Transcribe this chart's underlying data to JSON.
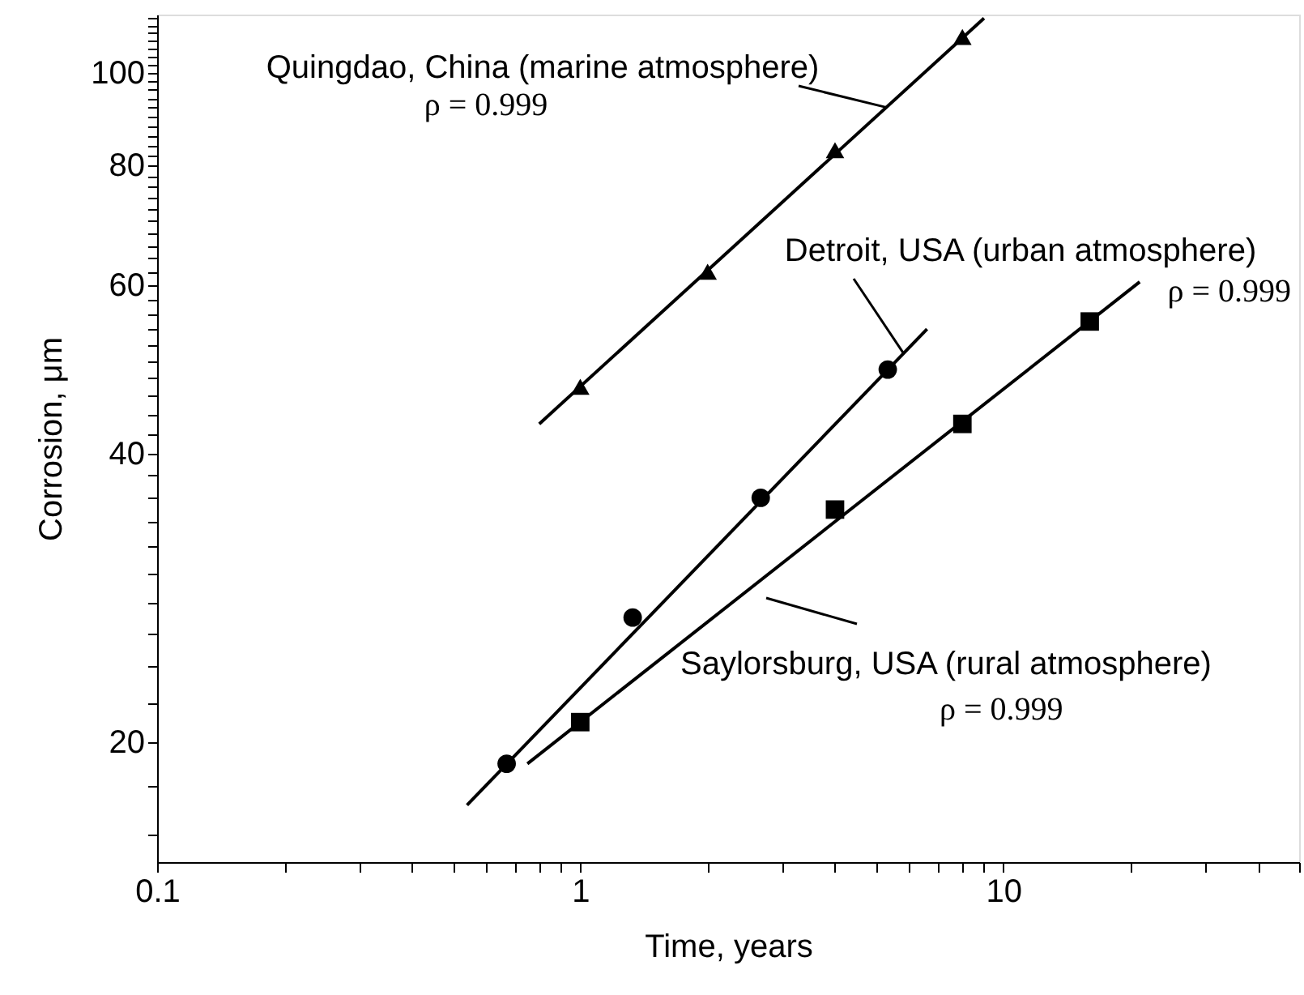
{
  "chart_data": {
    "type": "scatter",
    "xlabel": "Time, years",
    "ylabel": "Corrosion, μm",
    "log": "xy",
    "grid": false,
    "xlim": [
      0.1,
      50
    ],
    "ylim": [
      15,
      115
    ],
    "xticks": [
      0.1,
      {
        "value": 0.2,
        "label": null
      },
      {
        "value": 0.3,
        "label": null
      },
      {
        "value": 0.4,
        "label": null
      },
      {
        "value": 0.5,
        "label": null
      },
      {
        "value": 0.6,
        "label": null
      },
      {
        "value": 0.7,
        "label": null
      },
      {
        "value": 0.8,
        "label": null
      },
      {
        "value": 0.9,
        "label": null
      },
      1,
      {
        "value": 2,
        "label": null
      },
      {
        "value": 3,
        "label": null
      },
      {
        "value": 4,
        "label": null
      },
      {
        "value": 5,
        "label": null
      },
      {
        "value": 6,
        "label": null
      },
      {
        "value": 7,
        "label": null
      },
      {
        "value": 8,
        "label": null
      },
      {
        "value": 9,
        "label": null
      },
      10,
      {
        "value": 20,
        "label": null
      },
      {
        "value": 30,
        "label": null
      },
      {
        "value": 40,
        "label": null
      },
      {
        "value": 50,
        "label": null
      }
    ],
    "yticks": [
      {
        "value": 16,
        "label": null
      },
      {
        "value": 18,
        "label": null
      },
      20,
      {
        "value": 22,
        "label": null
      },
      {
        "value": 24,
        "label": null
      },
      {
        "value": 26,
        "label": null
      },
      {
        "value": 28,
        "label": null
      },
      {
        "value": 30,
        "label": null
      },
      {
        "value": 32,
        "label": null
      },
      {
        "value": 34,
        "label": null
      },
      {
        "value": 36,
        "label": null
      },
      {
        "value": 38,
        "label": null
      },
      40,
      {
        "value": 42,
        "label": null
      },
      {
        "value": 44,
        "label": null
      },
      {
        "value": 46,
        "label": null
      },
      {
        "value": 48,
        "label": null
      },
      {
        "value": 50,
        "label": null
      },
      {
        "value": 52,
        "label": null
      },
      {
        "value": 54,
        "label": null
      },
      {
        "value": 56,
        "label": null
      },
      {
        "value": 58,
        "label": null
      },
      60,
      {
        "value": 62,
        "label": null
      },
      {
        "value": 64,
        "label": null
      },
      {
        "value": 66,
        "label": null
      },
      {
        "value": 68,
        "label": null
      },
      {
        "value": 70,
        "label": null
      },
      {
        "value": 72,
        "label": null
      },
      {
        "value": 74,
        "label": null
      },
      {
        "value": 76,
        "label": null
      },
      {
        "value": 78,
        "label": null
      },
      80,
      {
        "value": 82,
        "label": null
      },
      {
        "value": 84,
        "label": null
      },
      {
        "value": 86,
        "label": null
      },
      {
        "value": 88,
        "label": null
      },
      {
        "value": 90,
        "label": null
      },
      {
        "value": 92,
        "label": null
      },
      {
        "value": 94,
        "label": null
      },
      {
        "value": 96,
        "label": null
      },
      {
        "value": 98,
        "label": null
      },
      100,
      {
        "value": 102,
        "label": null
      },
      {
        "value": 104,
        "label": null
      },
      {
        "value": 106,
        "label": null
      },
      {
        "value": 108,
        "label": null
      },
      {
        "value": 110,
        "label": null
      },
      {
        "value": 112,
        "label": null
      },
      {
        "value": 114,
        "label": null
      }
    ],
    "series": [
      {
        "type": "line",
        "color": "#000000",
        "marker": "none",
        "line_style": "solid",
        "x": [
          0.8,
          9
        ],
        "values": [
          43,
          114
        ]
      },
      {
        "type": "line",
        "color": "#000000",
        "marker": "none",
        "line_style": "solid",
        "x": [
          0.54,
          6.6
        ],
        "values": [
          17.2,
          54
        ]
      },
      {
        "type": "line",
        "color": "#000000",
        "marker": "none",
        "line_style": "solid",
        "x": [
          0.75,
          21
        ],
        "values": [
          19,
          60.5
        ]
      },
      {
        "type": "scatter",
        "color": "#000000",
        "marker": "triangle",
        "x": [
          1,
          2,
          4,
          8
        ],
        "values": [
          47,
          62,
          83,
          109
        ]
      },
      {
        "type": "scatter",
        "color": "#000000",
        "marker": "circle",
        "x": [
          0.67,
          1.33,
          2.67,
          5.33
        ],
        "values": [
          19,
          27,
          36,
          49
        ]
      },
      {
        "type": "scatter",
        "color": "#000000",
        "marker": "square",
        "x": [
          1,
          4,
          8,
          16
        ],
        "values": [
          21,
          35,
          43,
          55
        ]
      }
    ],
    "annotations": [
      {
        "text": "Quingdao, China (marine atmosphere)",
        "x": 5.3,
        "y": 92
      },
      "ρ = 0.999",
      {
        "text": "Detroit, USA (urban atmosphere)",
        "x": 5.8,
        "y": 51
      },
      "ρ = 0.999",
      "Saylorsburg, USA (rural atmosphere)",
      "ρ = 0.999"
    ]
  }
}
